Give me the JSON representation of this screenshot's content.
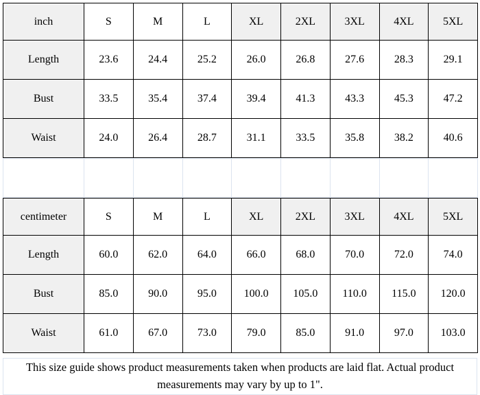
{
  "colors": {
    "header_fill": "#f0f0f0",
    "grid_black": "#000000",
    "grid_faint": "#dbe3ef",
    "background": "#ffffff"
  },
  "tables": [
    {
      "unit": "inch",
      "sizes": [
        "S",
        "M",
        "L",
        "XL",
        "2XL",
        "3XL",
        "4XL",
        "5XL"
      ],
      "rows": [
        {
          "label": "Length",
          "values": [
            "23.6",
            "24.4",
            "25.2",
            "26.0",
            "26.8",
            "27.6",
            "28.3",
            "29.1"
          ]
        },
        {
          "label": "Bust",
          "values": [
            "33.5",
            "35.4",
            "37.4",
            "39.4",
            "41.3",
            "43.3",
            "45.3",
            "47.2"
          ]
        },
        {
          "label": "Waist",
          "values": [
            "24.0",
            "26.4",
            "28.7",
            "31.1",
            "33.5",
            "35.8",
            "38.2",
            "40.6"
          ]
        }
      ]
    },
    {
      "unit": "centimeter",
      "sizes": [
        "S",
        "M",
        "L",
        "XL",
        "2XL",
        "3XL",
        "4XL",
        "5XL"
      ],
      "rows": [
        {
          "label": "Length",
          "values": [
            "60.0",
            "62.0",
            "64.0",
            "66.0",
            "68.0",
            "70.0",
            "72.0",
            "74.0"
          ]
        },
        {
          "label": "Bust",
          "values": [
            "85.0",
            "90.0",
            "95.0",
            "100.0",
            "105.0",
            "110.0",
            "115.0",
            "120.0"
          ]
        },
        {
          "label": "Waist",
          "values": [
            "61.0",
            "67.0",
            "73.0",
            "79.0",
            "85.0",
            "91.0",
            "97.0",
            "103.0"
          ]
        }
      ]
    }
  ],
  "footer": {
    "note": "This size guide shows product measurements taken when products are laid flat. Actual product measurements may vary by up to 1\"."
  }
}
